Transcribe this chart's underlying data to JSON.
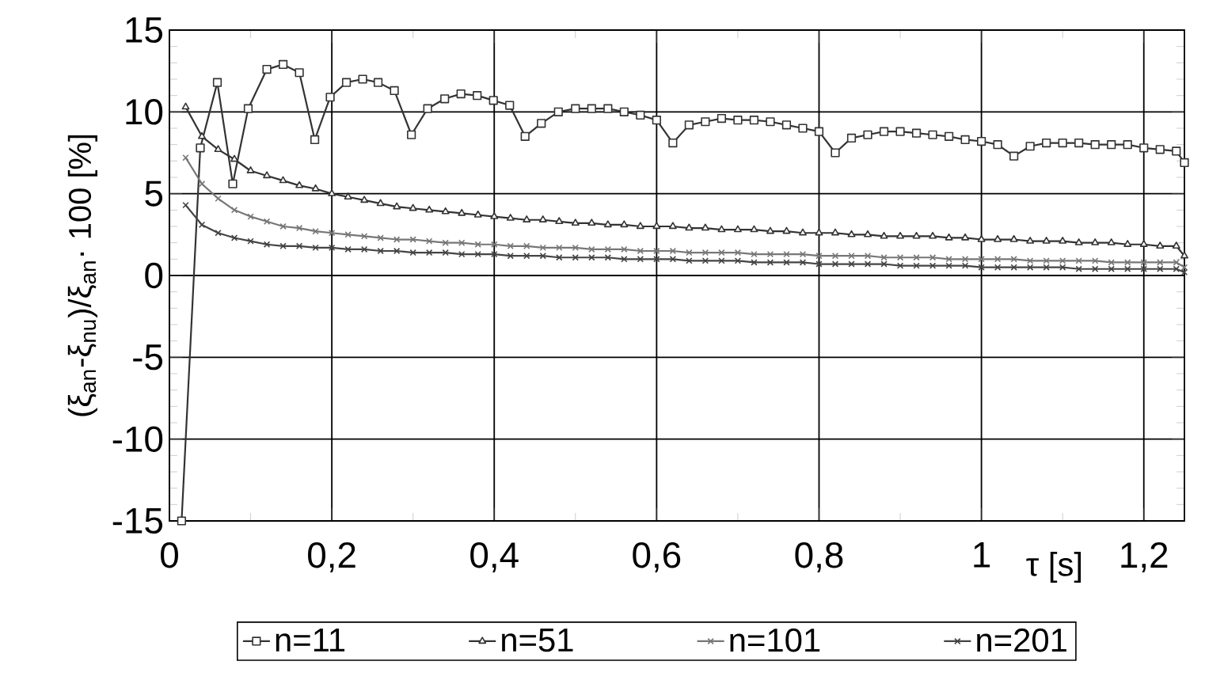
{
  "chart_data": {
    "type": "line",
    "xlabel": "τ [s]",
    "ylabel": "(ξ$_{an}$-ξ$_{nu}$)/ξ$_{an}$· 100 [%]",
    "x": [
      0.02,
      0.04,
      0.06,
      0.08,
      0.1,
      0.12,
      0.14,
      0.16,
      0.18,
      0.2,
      0.22,
      0.24,
      0.26,
      0.28,
      0.3,
      0.32,
      0.34,
      0.36,
      0.38,
      0.4,
      0.42,
      0.44,
      0.46,
      0.48,
      0.5,
      0.52,
      0.54,
      0.56,
      0.58,
      0.6,
      0.62,
      0.64,
      0.66,
      0.68,
      0.7,
      0.72,
      0.74,
      0.76,
      0.78,
      0.8,
      0.82,
      0.84,
      0.86,
      0.88,
      0.9,
      0.92,
      0.94,
      0.96,
      0.98,
      1.0,
      1.02,
      1.04,
      1.06,
      1.08,
      1.1,
      1.12,
      1.14,
      1.16,
      1.18,
      1.2,
      1.22,
      1.24,
      1.25
    ],
    "series": [
      {
        "name": "n=11",
        "color": "#333333",
        "marker": "square",
        "x": [
          0.015,
          0.038,
          0.059,
          0.078,
          0.097,
          0.12,
          0.14,
          0.16,
          0.179,
          0.198,
          0.218,
          0.238,
          0.257,
          0.277,
          0.298,
          0.318,
          0.339,
          0.359,
          0.379,
          0.399,
          0.419,
          0.438,
          0.458,
          0.479,
          0.5,
          0.52,
          0.54,
          0.56,
          0.58,
          0.6,
          0.62,
          0.64,
          0.66,
          0.68,
          0.7,
          0.72,
          0.74,
          0.76,
          0.78,
          0.8,
          0.82,
          0.84,
          0.86,
          0.88,
          0.9,
          0.92,
          0.94,
          0.96,
          0.98,
          1.0,
          1.02,
          1.04,
          1.06,
          1.08,
          1.1,
          1.12,
          1.14,
          1.16,
          1.18,
          1.2,
          1.22,
          1.24,
          1.25
        ],
        "values": [
          -15,
          7.8,
          11.8,
          5.6,
          10.2,
          12.6,
          12.9,
          12.4,
          8.3,
          10.9,
          11.8,
          12.0,
          11.8,
          11.3,
          8.6,
          10.2,
          10.8,
          11.1,
          11.0,
          10.7,
          10.4,
          8.5,
          9.3,
          10.0,
          10.2,
          10.2,
          10.2,
          10.0,
          9.8,
          9.5,
          8.1,
          9.2,
          9.4,
          9.6,
          9.5,
          9.5,
          9.4,
          9.2,
          9.0,
          8.8,
          7.5,
          8.4,
          8.6,
          8.8,
          8.8,
          8.7,
          8.6,
          8.5,
          8.3,
          8.2,
          8.0,
          7.3,
          7.9,
          8.1,
          8.1,
          8.1,
          8.0,
          8.0,
          8.0,
          7.8,
          7.7,
          7.6,
          6.9
        ]
      },
      {
        "name": "n=51",
        "color": "#333333",
        "marker": "triangle",
        "values": [
          10.3,
          8.5,
          7.7,
          7.1,
          6.4,
          6.1,
          5.8,
          5.5,
          5.3,
          5.0,
          4.8,
          4.6,
          4.4,
          4.2,
          4.1,
          4.0,
          3.9,
          3.8,
          3.7,
          3.6,
          3.5,
          3.4,
          3.4,
          3.3,
          3.2,
          3.2,
          3.1,
          3.1,
          3.0,
          3.0,
          3.0,
          2.9,
          2.9,
          2.8,
          2.8,
          2.8,
          2.7,
          2.7,
          2.6,
          2.6,
          2.6,
          2.5,
          2.5,
          2.4,
          2.4,
          2.4,
          2.4,
          2.3,
          2.3,
          2.2,
          2.2,
          2.2,
          2.1,
          2.1,
          2.1,
          2.0,
          2.0,
          2.0,
          1.9,
          1.9,
          1.8,
          1.8,
          1.2
        ]
      },
      {
        "name": "n=101",
        "color": "#777777",
        "marker": "cross",
        "values": [
          7.2,
          5.6,
          4.7,
          4.0,
          3.6,
          3.3,
          3.0,
          2.9,
          2.7,
          2.6,
          2.5,
          2.4,
          2.3,
          2.2,
          2.2,
          2.1,
          2.0,
          2.0,
          1.9,
          1.9,
          1.8,
          1.8,
          1.7,
          1.7,
          1.7,
          1.6,
          1.6,
          1.6,
          1.5,
          1.5,
          1.5,
          1.4,
          1.4,
          1.4,
          1.4,
          1.3,
          1.3,
          1.3,
          1.3,
          1.2,
          1.2,
          1.2,
          1.2,
          1.1,
          1.1,
          1.1,
          1.1,
          1.0,
          1.0,
          1.0,
          1.0,
          1.0,
          0.9,
          0.9,
          0.9,
          0.9,
          0.9,
          0.8,
          0.8,
          0.8,
          0.8,
          0.8,
          0.5
        ]
      },
      {
        "name": "n=201",
        "color": "#444444",
        "marker": "cross",
        "values": [
          4.3,
          3.1,
          2.6,
          2.3,
          2.1,
          1.9,
          1.8,
          1.8,
          1.7,
          1.7,
          1.6,
          1.6,
          1.5,
          1.5,
          1.4,
          1.4,
          1.4,
          1.3,
          1.3,
          1.3,
          1.2,
          1.2,
          1.2,
          1.1,
          1.1,
          1.1,
          1.1,
          1.0,
          1.0,
          1.0,
          1.0,
          0.9,
          0.9,
          0.9,
          0.9,
          0.8,
          0.8,
          0.8,
          0.8,
          0.7,
          0.7,
          0.7,
          0.7,
          0.7,
          0.6,
          0.6,
          0.6,
          0.6,
          0.6,
          0.5,
          0.5,
          0.5,
          0.5,
          0.5,
          0.5,
          0.4,
          0.4,
          0.4,
          0.4,
          0.4,
          0.4,
          0.4,
          0.2
        ]
      }
    ],
    "xlim": [
      0,
      1.25
    ],
    "ylim": [
      -15,
      15
    ],
    "xticks": [
      0,
      {
        "value": 0.2,
        "label": "0,2"
      },
      {
        "value": 0.4,
        "label": "0,4"
      },
      {
        "value": 0.6,
        "label": "0,6"
      },
      {
        "value": 0.8,
        "label": "0,8"
      },
      1,
      {
        "value": 1.2,
        "label": "1,2"
      }
    ],
    "yticks": [
      -15,
      -10,
      -5,
      0,
      5,
      10,
      15
    ],
    "grid": true,
    "legend": "bottom",
    "line_style": "solid"
  }
}
